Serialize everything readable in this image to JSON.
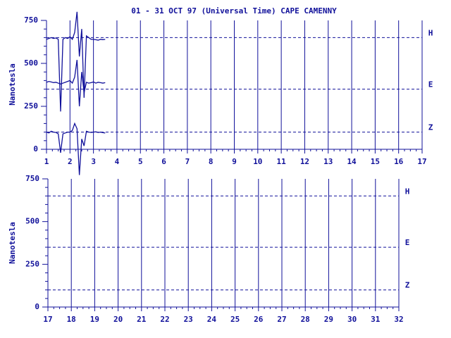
{
  "chart_data": [
    {
      "type": "line",
      "title": "01 - 31 OCT 97 (Universal Time) CAPE CAMENNY",
      "ylabel": "Nanotesla",
      "xlim": [
        1,
        17
      ],
      "xticks": [
        1,
        2,
        3,
        4,
        5,
        6,
        7,
        8,
        9,
        10,
        11,
        12,
        13,
        14,
        15,
        16,
        17
      ],
      "ylim": [
        0,
        750
      ],
      "yticks": [
        0,
        250,
        500,
        750
      ],
      "grid": true,
      "color": "#10109a",
      "baselines": [
        {
          "label": "H",
          "value": 650
        },
        {
          "label": "E",
          "value": 350
        },
        {
          "label": "Z",
          "value": 100
        }
      ],
      "x": [
        1.0,
        1.1,
        1.2,
        1.3,
        1.4,
        1.5,
        1.6,
        1.7,
        1.8,
        1.9,
        2.0,
        2.1,
        2.2,
        2.3,
        2.4,
        2.5,
        2.6,
        2.7,
        2.8,
        2.9,
        3.0,
        3.1,
        3.2,
        3.3,
        3.4,
        3.5
      ],
      "series": [
        {
          "name": "H",
          "color": "#10109a",
          "values": [
            640,
            645,
            650,
            645,
            648,
            640,
            220,
            640,
            650,
            645,
            655,
            640,
            680,
            800,
            540,
            700,
            300,
            660,
            650,
            640,
            640,
            638,
            635,
            640,
            638,
            640
          ]
        },
        {
          "name": "E",
          "color": "#10109a",
          "values": [
            390,
            395,
            392,
            388,
            390,
            385,
            380,
            385,
            390,
            395,
            400,
            385,
            420,
            520,
            250,
            450,
            330,
            390,
            385,
            388,
            392,
            385,
            390,
            388,
            385,
            388
          ]
        },
        {
          "name": "Z",
          "color": "#10109a",
          "values": [
            100,
            95,
            105,
            100,
            98,
            90,
            -20,
            90,
            95,
            100,
            100,
            110,
            150,
            120,
            -150,
            60,
            20,
            105,
            100,
            98,
            100,
            102,
            98,
            100,
            97,
            95
          ]
        }
      ]
    },
    {
      "type": "line",
      "ylabel": "Nanotesla",
      "xlim": [
        17,
        32
      ],
      "xticks": [
        17,
        18,
        19,
        20,
        21,
        22,
        23,
        24,
        25,
        26,
        27,
        28,
        29,
        30,
        31,
        32
      ],
      "ylim": [
        0,
        750
      ],
      "yticks": [
        0,
        250,
        500,
        750
      ],
      "grid": true,
      "color": "#10109a",
      "baselines": [
        {
          "label": "H",
          "value": 650
        },
        {
          "label": "E",
          "value": 350
        },
        {
          "label": "Z",
          "value": 100
        }
      ],
      "x": [],
      "series": []
    }
  ]
}
